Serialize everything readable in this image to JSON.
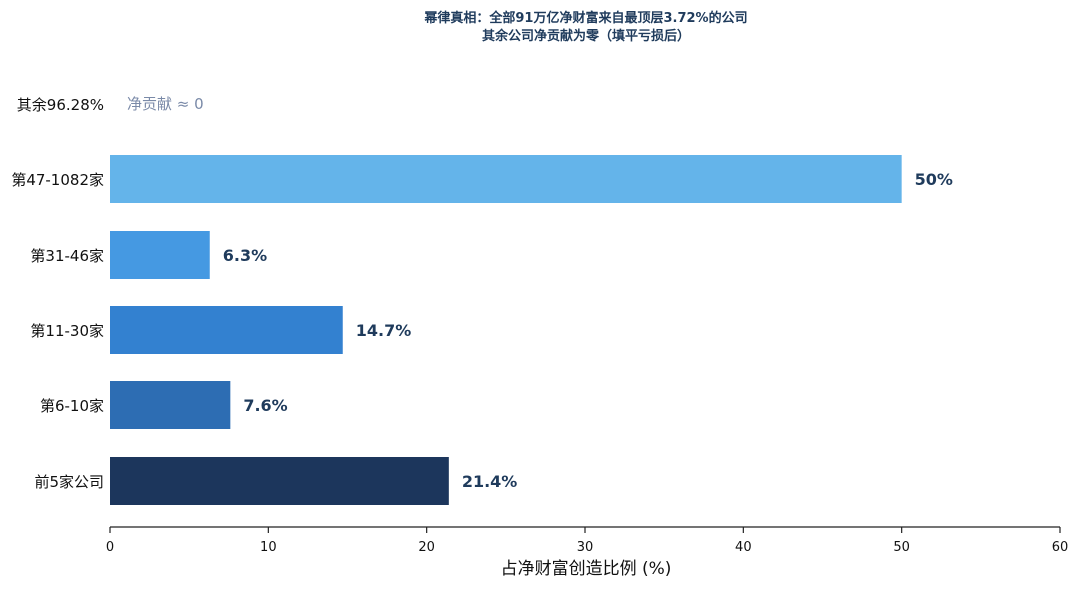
{
  "chart_data": {
    "type": "bar",
    "orientation": "horizontal",
    "title": [
      "幂律真相：全部91万亿净财富来自最顶层3.72%的公司",
      "其余公司净贡献为零（填平亏损后）"
    ],
    "categories": [
      "前5家公司",
      "第6-10家",
      "第11-30家",
      "第31-46家",
      "第47-1082家",
      "其余96.28%"
    ],
    "values": [
      21.4,
      7.6,
      14.7,
      6.3,
      50,
      0
    ],
    "value_labels": [
      "21.4%",
      "7.6%",
      "14.7%",
      "6.3%",
      "50%",
      ""
    ],
    "colors": [
      "#1c365c",
      "#2d6db3",
      "#3381d0",
      "#4599e2",
      "#64b4ea",
      "#ffffff"
    ],
    "note": "净贡献 ≈ 0",
    "xlabel": "占净财富创造比例 (%)",
    "xlim": [
      0,
      60
    ],
    "xticks": [
      0,
      10,
      20,
      30,
      40,
      50,
      60
    ],
    "grid": false
  }
}
